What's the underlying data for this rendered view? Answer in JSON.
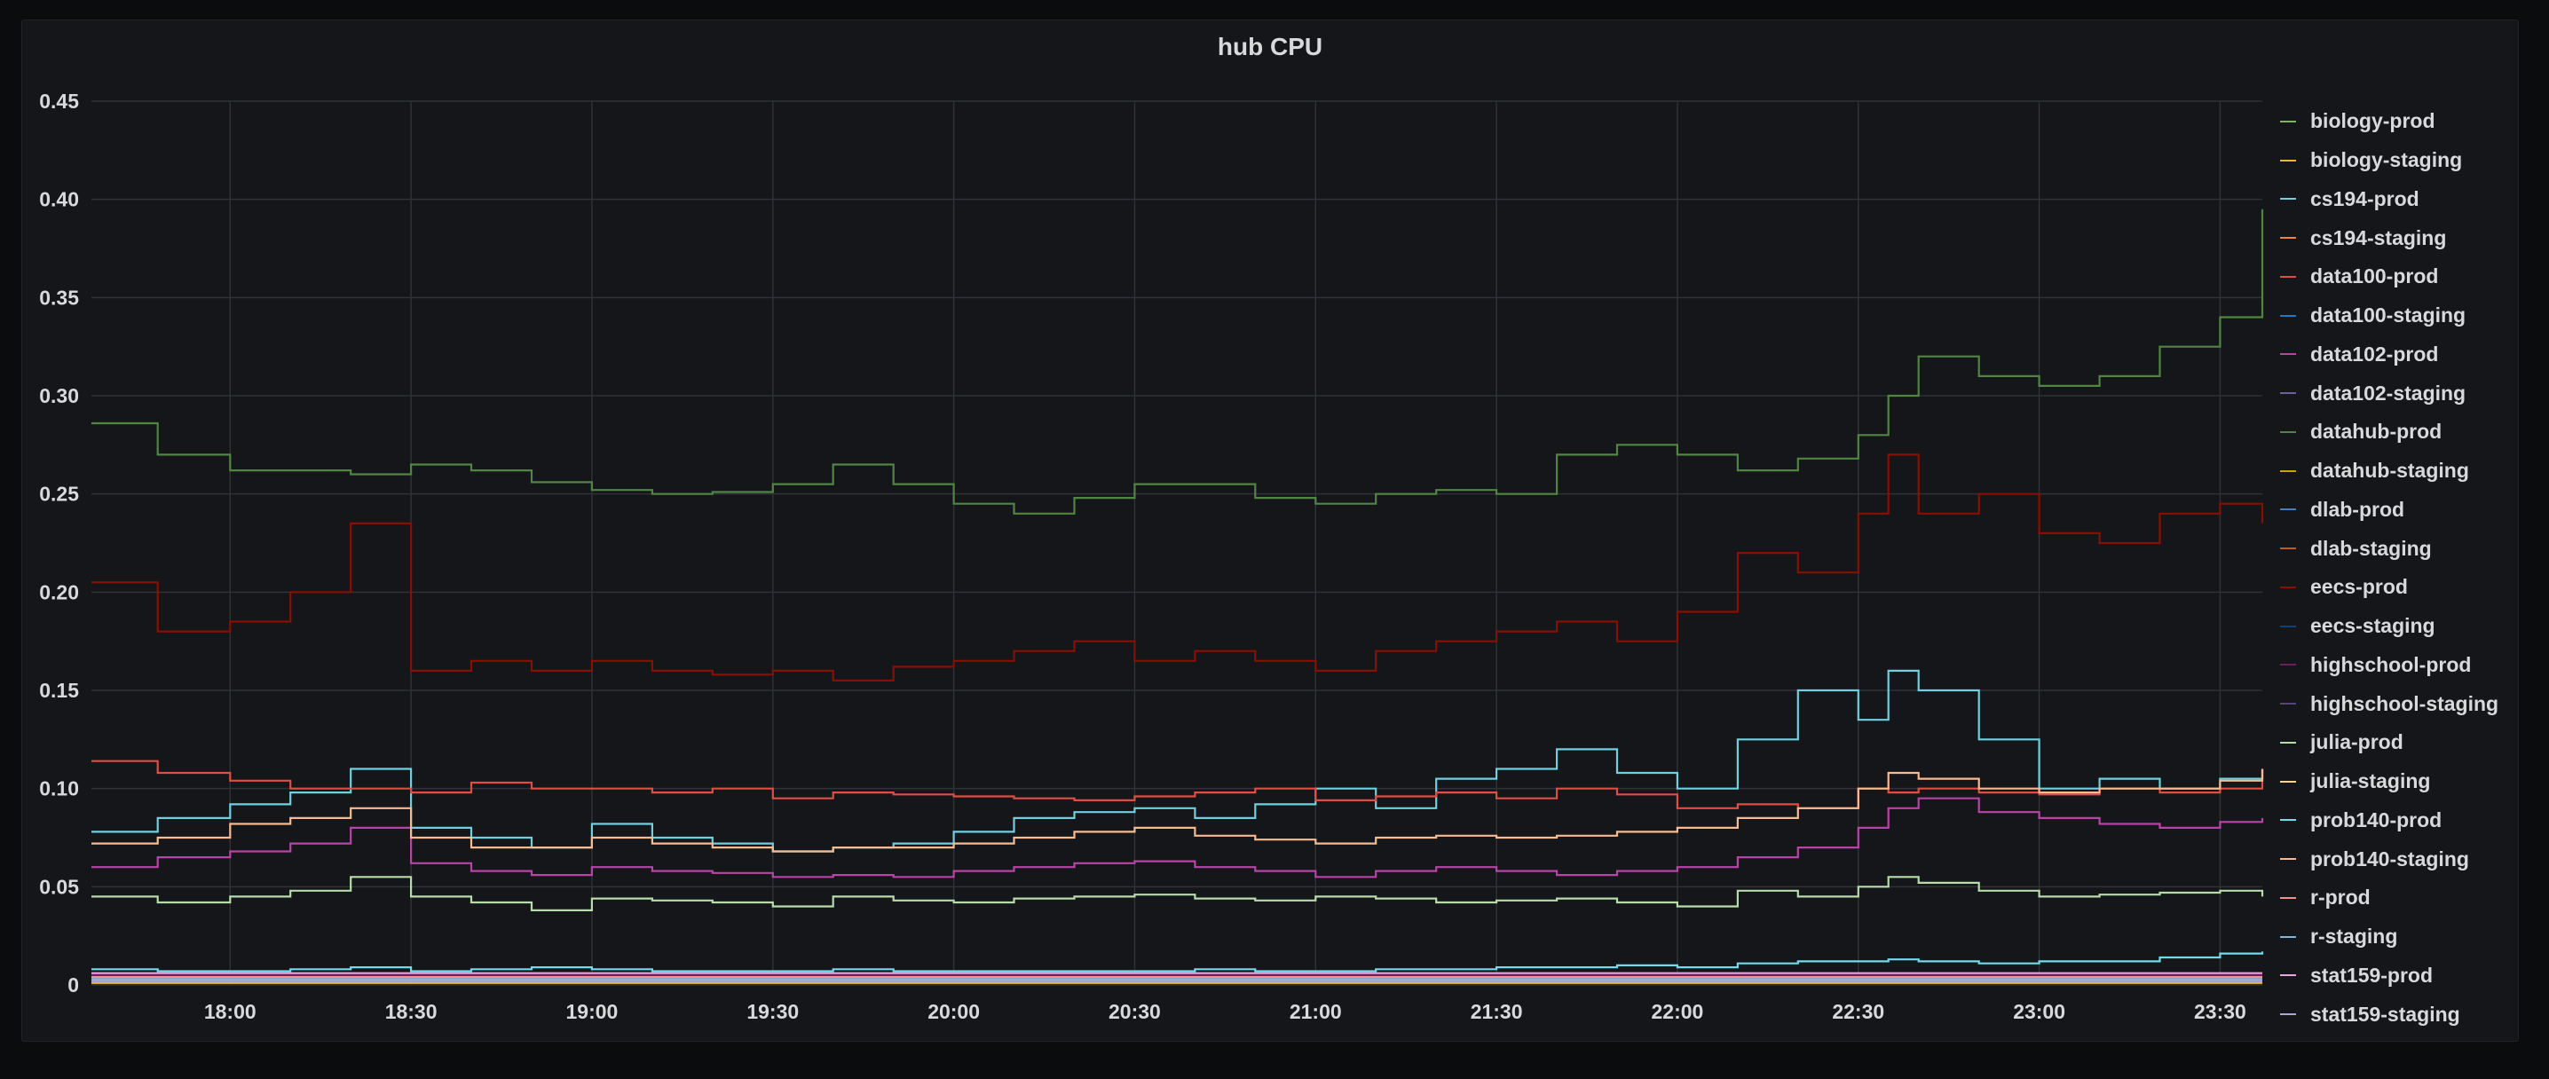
{
  "panel": {
    "title": "hub CPU"
  },
  "chart_data": {
    "type": "line",
    "title": "hub CPU",
    "xlabel": "",
    "ylabel": "",
    "ylim": [
      0,
      0.45
    ],
    "xlim": [
      "17:37",
      "23:37"
    ],
    "step": true,
    "grid": true,
    "legend_position": "right",
    "y_ticks": [
      "0",
      "0.05",
      "0.10",
      "0.15",
      "0.20",
      "0.25",
      "0.30",
      "0.35",
      "0.40",
      "0.45"
    ],
    "x_ticks": [
      "18:00",
      "18:30",
      "19:00",
      "19:30",
      "20:00",
      "20:30",
      "21:00",
      "21:30",
      "22:00",
      "22:30",
      "23:00",
      "23:30"
    ],
    "x": [
      "17:37",
      "17:48",
      "18:00",
      "18:10",
      "18:20",
      "18:30",
      "18:40",
      "18:50",
      "19:00",
      "19:10",
      "19:20",
      "19:30",
      "19:40",
      "19:50",
      "20:00",
      "20:10",
      "20:20",
      "20:30",
      "20:40",
      "20:50",
      "21:00",
      "21:10",
      "21:20",
      "21:30",
      "21:40",
      "21:50",
      "22:00",
      "22:10",
      "22:20",
      "22:30",
      "22:35",
      "22:40",
      "22:50",
      "23:00",
      "23:10",
      "23:20",
      "23:30",
      "23:37"
    ],
    "series": [
      {
        "name": "biology-prod",
        "color": "#7eb26d",
        "values": [
          0.002,
          0.002,
          0.002,
          0.002,
          0.002,
          0.002,
          0.002,
          0.002,
          0.002,
          0.002,
          0.002,
          0.002,
          0.002,
          0.002,
          0.002,
          0.002,
          0.002,
          0.002,
          0.002,
          0.002,
          0.002,
          0.002,
          0.002,
          0.002,
          0.002,
          0.002,
          0.002,
          0.002,
          0.002,
          0.002,
          0.002,
          0.002,
          0.002,
          0.002,
          0.002,
          0.002,
          0.002,
          0.002
        ]
      },
      {
        "name": "biology-staging",
        "color": "#eab839",
        "values": [
          0.001,
          0.001,
          0.001,
          0.001,
          0.001,
          0.001,
          0.001,
          0.001,
          0.001,
          0.001,
          0.001,
          0.001,
          0.001,
          0.001,
          0.001,
          0.001,
          0.001,
          0.001,
          0.001,
          0.001,
          0.001,
          0.001,
          0.001,
          0.001,
          0.001,
          0.001,
          0.001,
          0.001,
          0.001,
          0.001,
          0.001,
          0.001,
          0.001,
          0.001,
          0.001,
          0.001,
          0.001,
          0.001
        ]
      },
      {
        "name": "cs194-prod",
        "color": "#6ed0e0",
        "values": [
          0.078,
          0.085,
          0.092,
          0.098,
          0.11,
          0.08,
          0.075,
          0.07,
          0.082,
          0.075,
          0.072,
          0.068,
          0.07,
          0.072,
          0.078,
          0.085,
          0.088,
          0.09,
          0.085,
          0.092,
          0.1,
          0.09,
          0.105,
          0.11,
          0.12,
          0.108,
          0.1,
          0.125,
          0.15,
          0.135,
          0.16,
          0.15,
          0.125,
          0.1,
          0.105,
          0.1,
          0.105,
          0.11
        ]
      },
      {
        "name": "cs194-staging",
        "color": "#ef843c",
        "values": [
          0.002,
          0.002,
          0.002,
          0.002,
          0.002,
          0.002,
          0.002,
          0.002,
          0.002,
          0.002,
          0.002,
          0.002,
          0.002,
          0.002,
          0.002,
          0.002,
          0.002,
          0.002,
          0.002,
          0.002,
          0.002,
          0.002,
          0.002,
          0.002,
          0.002,
          0.002,
          0.002,
          0.002,
          0.002,
          0.002,
          0.002,
          0.002,
          0.002,
          0.002,
          0.002,
          0.002,
          0.002,
          0.002
        ]
      },
      {
        "name": "data100-prod",
        "color": "#e24d42",
        "values": [
          0.114,
          0.108,
          0.104,
          0.1,
          0.1,
          0.098,
          0.103,
          0.1,
          0.1,
          0.098,
          0.1,
          0.095,
          0.098,
          0.097,
          0.096,
          0.095,
          0.094,
          0.096,
          0.098,
          0.1,
          0.094,
          0.096,
          0.098,
          0.095,
          0.1,
          0.097,
          0.09,
          0.092,
          0.09,
          0.1,
          0.098,
          0.1,
          0.098,
          0.097,
          0.1,
          0.098,
          0.1,
          0.11
        ]
      },
      {
        "name": "data100-staging",
        "color": "#1f78c1",
        "values": [
          0.003,
          0.003,
          0.003,
          0.003,
          0.003,
          0.003,
          0.003,
          0.003,
          0.003,
          0.003,
          0.003,
          0.003,
          0.003,
          0.003,
          0.003,
          0.003,
          0.003,
          0.003,
          0.003,
          0.003,
          0.003,
          0.003,
          0.003,
          0.003,
          0.003,
          0.003,
          0.003,
          0.003,
          0.003,
          0.003,
          0.003,
          0.003,
          0.003,
          0.003,
          0.003,
          0.003,
          0.003,
          0.003
        ]
      },
      {
        "name": "data102-prod",
        "color": "#ba43a9",
        "values": [
          0.06,
          0.065,
          0.068,
          0.072,
          0.08,
          0.062,
          0.058,
          0.056,
          0.06,
          0.058,
          0.057,
          0.055,
          0.056,
          0.055,
          0.058,
          0.06,
          0.062,
          0.063,
          0.06,
          0.058,
          0.055,
          0.058,
          0.06,
          0.058,
          0.056,
          0.058,
          0.06,
          0.065,
          0.07,
          0.08,
          0.09,
          0.095,
          0.088,
          0.085,
          0.082,
          0.08,
          0.083,
          0.085
        ]
      },
      {
        "name": "data102-staging",
        "color": "#705da0",
        "values": [
          0.002,
          0.002,
          0.002,
          0.002,
          0.002,
          0.002,
          0.002,
          0.002,
          0.002,
          0.002,
          0.002,
          0.002,
          0.002,
          0.002,
          0.002,
          0.002,
          0.002,
          0.002,
          0.002,
          0.002,
          0.002,
          0.002,
          0.002,
          0.002,
          0.002,
          0.002,
          0.002,
          0.002,
          0.002,
          0.002,
          0.002,
          0.002,
          0.002,
          0.002,
          0.002,
          0.002,
          0.002,
          0.002
        ]
      },
      {
        "name": "datahub-prod",
        "color": "#508642",
        "values": [
          0.286,
          0.27,
          0.262,
          0.262,
          0.26,
          0.265,
          0.262,
          0.256,
          0.252,
          0.25,
          0.251,
          0.255,
          0.265,
          0.255,
          0.245,
          0.24,
          0.248,
          0.255,
          0.255,
          0.248,
          0.245,
          0.25,
          0.252,
          0.25,
          0.27,
          0.275,
          0.27,
          0.262,
          0.268,
          0.28,
          0.3,
          0.32,
          0.31,
          0.305,
          0.31,
          0.325,
          0.34,
          0.395
        ]
      },
      {
        "name": "datahub-staging",
        "color": "#cca300",
        "values": [
          0.002,
          0.002,
          0.002,
          0.002,
          0.002,
          0.002,
          0.002,
          0.002,
          0.002,
          0.002,
          0.002,
          0.002,
          0.002,
          0.002,
          0.002,
          0.002,
          0.002,
          0.002,
          0.002,
          0.002,
          0.002,
          0.002,
          0.002,
          0.002,
          0.002,
          0.002,
          0.002,
          0.002,
          0.002,
          0.002,
          0.002,
          0.002,
          0.002,
          0.002,
          0.002,
          0.002,
          0.002,
          0.002
        ]
      },
      {
        "name": "dlab-prod",
        "color": "#447ebc",
        "values": [
          0.004,
          0.004,
          0.004,
          0.004,
          0.004,
          0.004,
          0.004,
          0.004,
          0.004,
          0.004,
          0.004,
          0.004,
          0.004,
          0.004,
          0.004,
          0.004,
          0.004,
          0.004,
          0.004,
          0.004,
          0.004,
          0.004,
          0.004,
          0.004,
          0.004,
          0.004,
          0.004,
          0.004,
          0.004,
          0.004,
          0.004,
          0.004,
          0.004,
          0.004,
          0.004,
          0.004,
          0.004,
          0.004
        ]
      },
      {
        "name": "dlab-staging",
        "color": "#c15c17",
        "values": [
          0.002,
          0.002,
          0.002,
          0.002,
          0.002,
          0.002,
          0.002,
          0.002,
          0.002,
          0.002,
          0.002,
          0.002,
          0.002,
          0.002,
          0.002,
          0.002,
          0.002,
          0.002,
          0.002,
          0.002,
          0.002,
          0.002,
          0.002,
          0.002,
          0.002,
          0.002,
          0.002,
          0.002,
          0.002,
          0.002,
          0.002,
          0.002,
          0.002,
          0.002,
          0.002,
          0.002,
          0.002,
          0.002
        ]
      },
      {
        "name": "eecs-prod",
        "color": "#890f02",
        "values": [
          0.205,
          0.18,
          0.185,
          0.2,
          0.235,
          0.16,
          0.165,
          0.16,
          0.165,
          0.16,
          0.158,
          0.16,
          0.155,
          0.162,
          0.165,
          0.17,
          0.175,
          0.165,
          0.17,
          0.165,
          0.16,
          0.17,
          0.175,
          0.18,
          0.185,
          0.175,
          0.19,
          0.22,
          0.21,
          0.24,
          0.27,
          0.24,
          0.25,
          0.23,
          0.225,
          0.24,
          0.245,
          0.235
        ]
      },
      {
        "name": "eecs-staging",
        "color": "#0a437c",
        "values": [
          0.002,
          0.002,
          0.002,
          0.002,
          0.002,
          0.002,
          0.002,
          0.002,
          0.002,
          0.002,
          0.002,
          0.002,
          0.002,
          0.002,
          0.002,
          0.002,
          0.002,
          0.002,
          0.002,
          0.002,
          0.002,
          0.002,
          0.002,
          0.002,
          0.002,
          0.002,
          0.002,
          0.002,
          0.002,
          0.002,
          0.002,
          0.002,
          0.002,
          0.002,
          0.002,
          0.002,
          0.002,
          0.002
        ]
      },
      {
        "name": "highschool-prod",
        "color": "#6d1f62",
        "values": [
          0.005,
          0.005,
          0.005,
          0.005,
          0.005,
          0.005,
          0.005,
          0.005,
          0.005,
          0.005,
          0.005,
          0.005,
          0.005,
          0.005,
          0.005,
          0.005,
          0.005,
          0.005,
          0.005,
          0.005,
          0.005,
          0.005,
          0.005,
          0.005,
          0.005,
          0.005,
          0.005,
          0.005,
          0.005,
          0.005,
          0.005,
          0.005,
          0.005,
          0.005,
          0.005,
          0.005,
          0.005,
          0.005
        ]
      },
      {
        "name": "highschool-staging",
        "color": "#584477",
        "values": [
          0.002,
          0.002,
          0.002,
          0.002,
          0.002,
          0.002,
          0.002,
          0.002,
          0.002,
          0.002,
          0.002,
          0.002,
          0.002,
          0.002,
          0.002,
          0.002,
          0.002,
          0.002,
          0.002,
          0.002,
          0.002,
          0.002,
          0.002,
          0.002,
          0.002,
          0.002,
          0.002,
          0.002,
          0.002,
          0.002,
          0.002,
          0.002,
          0.002,
          0.002,
          0.002,
          0.002,
          0.002,
          0.002
        ]
      },
      {
        "name": "julia-prod",
        "color": "#b7dbab",
        "values": [
          0.045,
          0.042,
          0.045,
          0.048,
          0.055,
          0.045,
          0.042,
          0.038,
          0.044,
          0.043,
          0.042,
          0.04,
          0.045,
          0.043,
          0.042,
          0.044,
          0.045,
          0.046,
          0.044,
          0.043,
          0.045,
          0.044,
          0.042,
          0.043,
          0.044,
          0.042,
          0.04,
          0.048,
          0.045,
          0.05,
          0.055,
          0.052,
          0.048,
          0.045,
          0.046,
          0.047,
          0.048,
          0.045
        ]
      },
      {
        "name": "julia-staging",
        "color": "#f4d598",
        "values": [
          0.002,
          0.002,
          0.002,
          0.002,
          0.002,
          0.002,
          0.002,
          0.002,
          0.002,
          0.002,
          0.002,
          0.002,
          0.002,
          0.002,
          0.002,
          0.002,
          0.002,
          0.002,
          0.002,
          0.002,
          0.002,
          0.002,
          0.002,
          0.002,
          0.002,
          0.002,
          0.002,
          0.002,
          0.002,
          0.002,
          0.002,
          0.002,
          0.002,
          0.002,
          0.002,
          0.002,
          0.002,
          0.002
        ]
      },
      {
        "name": "prob140-prod",
        "color": "#70dbed",
        "values": [
          0.008,
          0.007,
          0.007,
          0.008,
          0.009,
          0.007,
          0.008,
          0.009,
          0.008,
          0.007,
          0.007,
          0.007,
          0.008,
          0.007,
          0.007,
          0.007,
          0.007,
          0.007,
          0.008,
          0.007,
          0.007,
          0.008,
          0.008,
          0.009,
          0.009,
          0.01,
          0.009,
          0.011,
          0.012,
          0.012,
          0.013,
          0.012,
          0.011,
          0.012,
          0.012,
          0.014,
          0.016,
          0.017
        ]
      },
      {
        "name": "prob140-staging",
        "color": "#f9ba8f",
        "values": [
          0.072,
          0.075,
          0.082,
          0.085,
          0.09,
          0.075,
          0.07,
          0.07,
          0.075,
          0.072,
          0.07,
          0.068,
          0.07,
          0.07,
          0.072,
          0.075,
          0.078,
          0.08,
          0.076,
          0.074,
          0.072,
          0.075,
          0.076,
          0.075,
          0.076,
          0.078,
          0.08,
          0.085,
          0.09,
          0.1,
          0.108,
          0.105,
          0.1,
          0.098,
          0.1,
          0.1,
          0.104,
          0.11
        ]
      },
      {
        "name": "r-prod",
        "color": "#f29191",
        "values": [
          0.004,
          0.004,
          0.004,
          0.004,
          0.004,
          0.004,
          0.004,
          0.004,
          0.004,
          0.004,
          0.004,
          0.004,
          0.004,
          0.004,
          0.004,
          0.004,
          0.004,
          0.004,
          0.004,
          0.004,
          0.004,
          0.004,
          0.004,
          0.004,
          0.004,
          0.004,
          0.004,
          0.004,
          0.004,
          0.004,
          0.004,
          0.004,
          0.004,
          0.004,
          0.004,
          0.004,
          0.004,
          0.004
        ]
      },
      {
        "name": "r-staging",
        "color": "#82b5d8",
        "values": [
          0.003,
          0.003,
          0.003,
          0.003,
          0.003,
          0.003,
          0.003,
          0.003,
          0.003,
          0.003,
          0.003,
          0.003,
          0.003,
          0.003,
          0.003,
          0.003,
          0.003,
          0.003,
          0.003,
          0.003,
          0.003,
          0.003,
          0.003,
          0.003,
          0.003,
          0.003,
          0.003,
          0.003,
          0.003,
          0.003,
          0.003,
          0.003,
          0.003,
          0.003,
          0.003,
          0.003,
          0.003,
          0.003
        ]
      },
      {
        "name": "stat159-prod",
        "color": "#e5a8e2",
        "values": [
          0.006,
          0.006,
          0.006,
          0.006,
          0.006,
          0.006,
          0.006,
          0.006,
          0.006,
          0.006,
          0.006,
          0.006,
          0.006,
          0.006,
          0.006,
          0.006,
          0.006,
          0.006,
          0.006,
          0.006,
          0.006,
          0.006,
          0.006,
          0.006,
          0.006,
          0.006,
          0.006,
          0.006,
          0.006,
          0.006,
          0.006,
          0.006,
          0.006,
          0.006,
          0.006,
          0.006,
          0.006,
          0.006
        ]
      },
      {
        "name": "stat159-staging",
        "color": "#aea2e0",
        "values": [
          0.002,
          0.002,
          0.002,
          0.002,
          0.002,
          0.002,
          0.002,
          0.002,
          0.002,
          0.002,
          0.002,
          0.002,
          0.002,
          0.002,
          0.002,
          0.002,
          0.002,
          0.002,
          0.002,
          0.002,
          0.002,
          0.002,
          0.002,
          0.002,
          0.002,
          0.002,
          0.002,
          0.002,
          0.002,
          0.002,
          0.002,
          0.002,
          0.002,
          0.002,
          0.002,
          0.002,
          0.002,
          0.002
        ]
      }
    ]
  }
}
